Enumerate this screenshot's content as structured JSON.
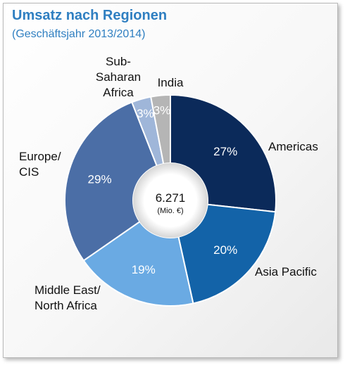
{
  "header": {
    "title": "Umsatz nach Regionen",
    "subtitle": "(Geschäftsjahr 2013/2014)"
  },
  "chart_data": {
    "type": "pie",
    "title": "Umsatz nach Regionen",
    "subtitle": "(Geschäftsjahr 2013/2014)",
    "total": "6.271",
    "total_unit": "(Mio. €)",
    "slices": [
      {
        "label": [
          "Americas"
        ],
        "value": 27,
        "pct_label": "27%",
        "color": "#0b2a5a"
      },
      {
        "label": [
          "Asia Pacific"
        ],
        "value": 20,
        "pct_label": "20%",
        "color": "#1363a8"
      },
      {
        "label": [
          "Middle East/",
          "North Africa"
        ],
        "value": 19,
        "pct_label": "19%",
        "color": "#6aaae3"
      },
      {
        "label": [
          "Europe/",
          "CIS"
        ],
        "value": 29,
        "pct_label": "29%",
        "color": "#4b6ea6"
      },
      {
        "label": [
          "Sub-",
          "Saharan",
          "Africa"
        ],
        "value": 3,
        "pct_label": "3%",
        "color": "#9fb6d9"
      },
      {
        "label": [
          "India"
        ],
        "value": 3,
        "pct_label": "3%",
        "color": "#b5b5b5"
      }
    ]
  }
}
